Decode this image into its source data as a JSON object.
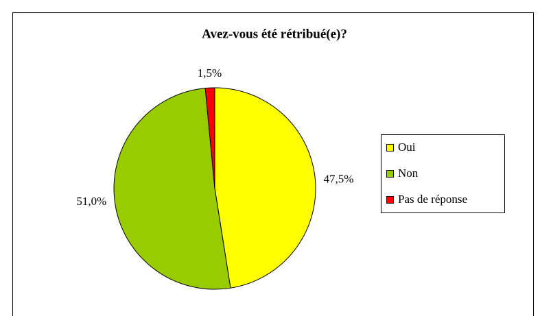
{
  "chart_data": {
    "type": "pie",
    "title": "Avez-vous été rétribué(e)?",
    "categories": [
      "Oui",
      "Non",
      "Pas de réponse"
    ],
    "values": [
      47.5,
      51.0,
      1.5
    ],
    "value_labels": [
      "47,5%",
      "51,0%",
      "1,5%"
    ],
    "colors": [
      "#ffff00",
      "#99cc00",
      "#ff0000"
    ],
    "legend": "right"
  }
}
